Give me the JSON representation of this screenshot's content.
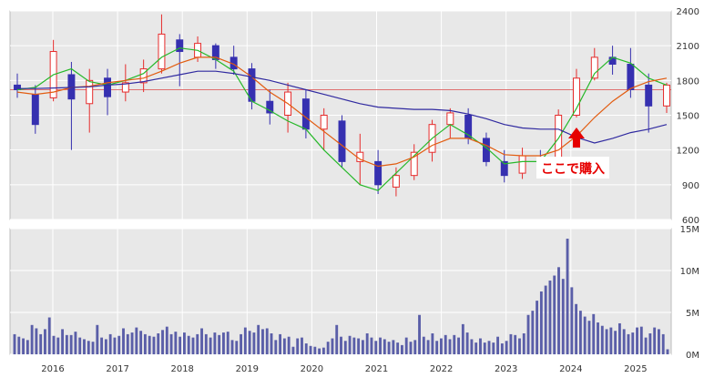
{
  "chart_data": [
    {
      "type": "candlestick",
      "y_axis_side": "right",
      "ylim": [
        600,
        2400
      ],
      "y_ticks": [
        600,
        900,
        1200,
        1500,
        1800,
        2100,
        2400
      ],
      "reference_line": 1720,
      "moving_averages": [
        {
          "color": "#27b82a",
          "values": [
            1720,
            1740,
            1850,
            1900,
            1790,
            1760,
            1800,
            1860,
            2000,
            2080,
            2060,
            1980,
            1880,
            1620,
            1540,
            1450,
            1380,
            1200,
            1050,
            900,
            850,
            1000,
            1150,
            1300,
            1420,
            1330,
            1220,
            1080,
            1100,
            1100,
            1300,
            1560,
            1860,
            2000,
            1950,
            1820,
            1760
          ]
        },
        {
          "color": "#e25c10",
          "values": [
            1700,
            1680,
            1700,
            1740,
            1750,
            1780,
            1800,
            1820,
            1880,
            1950,
            2000,
            2000,
            1940,
            1830,
            1700,
            1600,
            1480,
            1360,
            1240,
            1120,
            1060,
            1080,
            1140,
            1240,
            1300,
            1300,
            1240,
            1160,
            1150,
            1150,
            1200,
            1320,
            1480,
            1620,
            1730,
            1790,
            1820
          ]
        },
        {
          "color": "#302aa0",
          "values": [
            1730,
            1730,
            1735,
            1740,
            1745,
            1760,
            1770,
            1790,
            1820,
            1850,
            1880,
            1880,
            1860,
            1830,
            1800,
            1760,
            1720,
            1680,
            1640,
            1600,
            1570,
            1560,
            1550,
            1550,
            1540,
            1510,
            1470,
            1420,
            1390,
            1380,
            1380,
            1310,
            1260,
            1300,
            1350,
            1380,
            1420
          ]
        }
      ],
      "series_close": [
        1760,
        1740,
        1800,
        1900,
        1880,
        1750,
        1790,
        1850,
        2050,
        2100,
        2060,
        1990,
        1850,
        1640,
        1560,
        1460,
        1400,
        1250,
        1100,
        960,
        870,
        1000,
        1180,
        1330,
        1460,
        1350,
        1220,
        1080,
        1100,
        1100,
        1300,
        1560,
        1880,
        2020,
        1960,
        1800,
        1740
      ],
      "candles": [
        {
          "o": 1760,
          "h": 1860,
          "l": 1650,
          "c": 1720
        },
        {
          "o": 1680,
          "h": 1760,
          "l": 1340,
          "c": 1420
        },
        {
          "o": 1650,
          "h": 2150,
          "l": 1620,
          "c": 2050
        },
        {
          "o": 1850,
          "h": 1960,
          "l": 1200,
          "c": 1640
        },
        {
          "o": 1600,
          "h": 1900,
          "l": 1350,
          "c": 1800
        },
        {
          "o": 1820,
          "h": 1900,
          "l": 1500,
          "c": 1660
        },
        {
          "o": 1700,
          "h": 1940,
          "l": 1620,
          "c": 1780
        },
        {
          "o": 1780,
          "h": 1980,
          "l": 1700,
          "c": 1900
        },
        {
          "o": 1900,
          "h": 2370,
          "l": 1860,
          "c": 2200
        },
        {
          "o": 2150,
          "h": 2200,
          "l": 1750,
          "c": 2050
        },
        {
          "o": 2000,
          "h": 2180,
          "l": 1960,
          "c": 2120
        },
        {
          "o": 2100,
          "h": 2120,
          "l": 1900,
          "c": 1980
        },
        {
          "o": 2000,
          "h": 2100,
          "l": 1850,
          "c": 1900
        },
        {
          "o": 1900,
          "h": 1950,
          "l": 1550,
          "c": 1620
        },
        {
          "o": 1620,
          "h": 1720,
          "l": 1420,
          "c": 1520
        },
        {
          "o": 1500,
          "h": 1780,
          "l": 1350,
          "c": 1700
        },
        {
          "o": 1640,
          "h": 1720,
          "l": 1300,
          "c": 1380
        },
        {
          "o": 1380,
          "h": 1560,
          "l": 1200,
          "c": 1500
        },
        {
          "o": 1450,
          "h": 1500,
          "l": 1050,
          "c": 1100
        },
        {
          "o": 1100,
          "h": 1340,
          "l": 900,
          "c": 1180
        },
        {
          "o": 1100,
          "h": 1200,
          "l": 820,
          "c": 900
        },
        {
          "o": 880,
          "h": 1050,
          "l": 800,
          "c": 980
        },
        {
          "o": 980,
          "h": 1250,
          "l": 940,
          "c": 1180
        },
        {
          "o": 1180,
          "h": 1460,
          "l": 1100,
          "c": 1420
        },
        {
          "o": 1420,
          "h": 1560,
          "l": 1300,
          "c": 1520
        },
        {
          "o": 1500,
          "h": 1560,
          "l": 1250,
          "c": 1300
        },
        {
          "o": 1300,
          "h": 1350,
          "l": 1060,
          "c": 1100
        },
        {
          "o": 1100,
          "h": 1200,
          "l": 920,
          "c": 980
        },
        {
          "o": 1000,
          "h": 1220,
          "l": 950,
          "c": 1150
        },
        {
          "o": 1100,
          "h": 1200,
          "l": 1020,
          "c": 1080
        },
        {
          "o": 1080,
          "h": 1550,
          "l": 1060,
          "c": 1500
        },
        {
          "o": 1500,
          "h": 1900,
          "l": 1480,
          "c": 1820
        },
        {
          "o": 1820,
          "h": 2080,
          "l": 1800,
          "c": 2000
        },
        {
          "o": 2000,
          "h": 2100,
          "l": 1850,
          "c": 1940
        },
        {
          "o": 1940,
          "h": 2080,
          "l": 1650,
          "c": 1720
        },
        {
          "o": 1760,
          "h": 1860,
          "l": 1350,
          "c": 1580
        },
        {
          "o": 1580,
          "h": 1780,
          "l": 1520,
          "c": 1760
        }
      ],
      "annotation": {
        "text": "ここで購入",
        "at_index": 31,
        "color": "#e60000"
      }
    },
    {
      "type": "bar",
      "y_axis_side": "right",
      "ylim": [
        0,
        15
      ],
      "y_ticks": [
        {
          "v": 0,
          "label": "0M"
        },
        {
          "v": 5,
          "label": "5M"
        },
        {
          "v": 10,
          "label": "10M"
        },
        {
          "v": 15,
          "label": "15M"
        }
      ],
      "color": "#5a5ea8",
      "values": [
        2.4,
        2.1,
        1.9,
        1.7,
        3.5,
        3.1,
        2.4,
        3.0,
        4.4,
        2.2,
        2.0,
        3.0,
        2.3,
        2.3,
        2.7,
        2.0,
        1.8,
        1.6,
        1.5,
        3.5,
        2.0,
        1.8,
        2.4,
        2.0,
        2.2,
        3.1,
        2.4,
        2.6,
        3.2,
        2.8,
        2.4,
        2.2,
        2.1,
        2.5,
        2.9,
        3.3,
        2.4,
        2.7,
        2.1,
        2.6,
        2.2,
        2.0,
        2.4,
        3.1,
        2.4,
        2.0,
        2.6,
        2.3,
        2.6,
        2.7,
        1.7,
        1.6,
        2.4,
        3.2,
        2.8,
        2.6,
        3.5,
        3.0,
        3.1,
        2.5,
        1.7,
        2.4,
        1.9,
        2.1,
        0.9,
        1.9,
        2.0,
        1.3,
        1.0,
        0.9,
        0.7,
        0.8,
        1.5,
        1.9,
        3.5,
        2.1,
        1.6,
        2.2,
        2.0,
        1.9,
        1.7,
        2.5,
        2.0,
        1.6,
        2.0,
        1.8,
        1.5,
        1.7,
        1.4,
        1.1,
        2.0,
        1.5,
        1.7,
        4.7,
        2.1,
        1.7,
        2.5,
        1.6,
        1.9,
        2.3,
        1.8,
        2.3,
        2.0,
        3.6,
        2.6,
        1.8,
        1.4,
        1.9,
        1.4,
        1.6,
        1.4,
        2.1,
        1.3,
        1.6,
        2.4,
        2.3,
        1.9,
        2.5,
        4.7,
        5.2,
        6.4,
        7.5,
        8.2,
        8.8,
        9.4,
        10.4,
        9.0,
        13.8,
        8.0,
        6.0,
        5.2,
        4.5,
        4.0,
        4.8,
        3.8,
        3.4,
        3.0,
        3.2,
        2.8,
        3.7,
        3.0,
        2.4,
        2.6,
        3.2,
        3.3,
        2.0,
        2.5,
        3.2,
        3.0,
        2.4,
        0.6
      ]
    }
  ],
  "x_ticks": [
    "2016",
    "2017",
    "2018",
    "2019",
    "2020",
    "2021",
    "2022",
    "2023",
    "2024",
    "2025"
  ],
  "colors": {
    "up": "#e62c2c",
    "down": "#3630b0",
    "grid": "#ffffff",
    "plot_bg": "#e8e8e8"
  }
}
